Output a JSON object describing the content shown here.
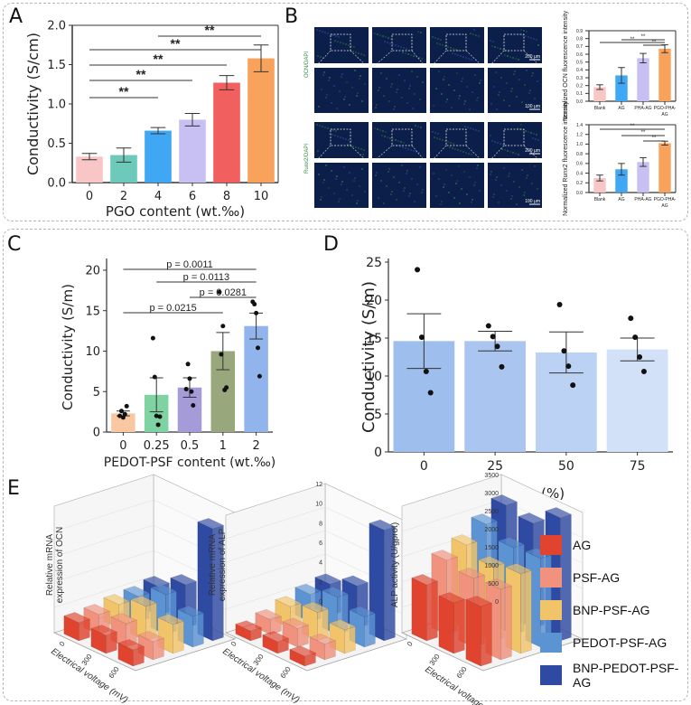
{
  "panels": {
    "A": "A",
    "B": "B",
    "C": "C",
    "D": "D",
    "E": "E"
  },
  "panel_b": {
    "row1_stain": "OCN/DAPI",
    "row2_stain": "Runx2/DAPI",
    "scale_200": "200 μm",
    "scale_100": "100 μm"
  },
  "chart_data": [
    {
      "id": "A",
      "type": "bar",
      "title": "",
      "xlabel": "PGO content (wt.‰)",
      "ylabel": "Conductivity (S/cm)",
      "categories": [
        "0",
        "2",
        "4",
        "6",
        "8",
        "10"
      ],
      "values": [
        0.33,
        0.35,
        0.66,
        0.8,
        1.27,
        1.58
      ],
      "errors": [
        0.04,
        0.09,
        0.04,
        0.08,
        0.09,
        0.17
      ],
      "colors": [
        "#f9c6c6",
        "#6dc9b9",
        "#3fa7f3",
        "#c8c0f3",
        "#f25f5f",
        "#f9a25c"
      ],
      "ylim": [
        0.0,
        2.0
      ],
      "yticks": [
        "0.0",
        "0.5",
        "1.0",
        "1.5",
        "2.0"
      ],
      "significance": [
        {
          "from": "0",
          "to": "4",
          "label": "**"
        },
        {
          "from": "0",
          "to": "6",
          "label": "**"
        },
        {
          "from": "0",
          "to": "8",
          "label": "**"
        },
        {
          "from": "0",
          "to": "10",
          "label": "**"
        },
        {
          "from": "4",
          "to": "10",
          "label": "**"
        }
      ]
    },
    {
      "id": "B-top",
      "type": "bar",
      "ylabel": "Normalized OCN fluorescence intensity",
      "categories": [
        "Blank",
        "AG",
        "PHA-AG",
        "PGO-PHA-AG"
      ],
      "values": [
        0.18,
        0.33,
        0.55,
        0.67
      ],
      "errors": [
        0.03,
        0.1,
        0.06,
        0.05
      ],
      "colors": [
        "#f9c6c6",
        "#3fa7f3",
        "#c8c0f3",
        "#f9a25c"
      ],
      "ylim": [
        0.0,
        0.9
      ],
      "yticks": [
        "0.0",
        "0.1",
        "0.2",
        "0.3",
        "0.4",
        "0.5",
        "0.6",
        "0.7",
        "0.8",
        "0.9"
      ],
      "significance": [
        {
          "from": "Blank",
          "to": "PGO-PHA-AG",
          "label": "**"
        },
        {
          "from": "AG",
          "to": "PGO-PHA-AG",
          "label": "**"
        },
        {
          "from": "PHA-AG",
          "to": "PGO-PHA-AG",
          "label": "**"
        }
      ]
    },
    {
      "id": "B-bottom",
      "type": "bar",
      "ylabel": "Normalized Runx2 fluorescence intensity",
      "categories": [
        "Blank",
        "AG",
        "PHA-AG",
        "PGO-PHA-AG"
      ],
      "values": [
        0.3,
        0.48,
        0.63,
        1.02
      ],
      "errors": [
        0.06,
        0.12,
        0.09,
        0.04
      ],
      "colors": [
        "#f9c6c6",
        "#3fa7f3",
        "#c8c0f3",
        "#f9a25c"
      ],
      "ylim": [
        0.0,
        1.4
      ],
      "yticks": [
        "0.0",
        "0.2",
        "0.4",
        "0.6",
        "0.8",
        "1.0",
        "1.2",
        "1.4"
      ],
      "significance": [
        {
          "from": "Blank",
          "to": "PGO-PHA-AG",
          "label": "**"
        },
        {
          "from": "AG",
          "to": "PGO-PHA-AG",
          "label": "**"
        },
        {
          "from": "PHA-AG",
          "to": "PGO-PHA-AG",
          "label": "**"
        }
      ]
    },
    {
      "id": "C",
      "type": "bar",
      "xlabel": "PEDOT-PSF content (wt.‰)",
      "ylabel": "Conductivity (S/m)",
      "categories": [
        "0",
        "0.25",
        "0.5",
        "1",
        "2"
      ],
      "values": [
        2.3,
        4.6,
        5.5,
        10.0,
        13.1
      ],
      "errors": [
        0.3,
        2.1,
        1.2,
        2.3,
        1.6
      ],
      "colors": [
        "#f9c8a3",
        "#7fd3a2",
        "#a59bd8",
        "#98a87c",
        "#92b4ec"
      ],
      "points": [
        [
          2.0,
          2.6,
          1.8,
          2.2,
          3.2
        ],
        [
          11.6,
          6.8,
          2.0,
          0.9,
          1.9
        ],
        [
          5.3,
          8.4,
          6.6,
          5.0,
          3.3
        ],
        [
          17.3,
          9.6,
          13.1,
          5.2,
          5.5
        ],
        [
          16.1,
          15.8,
          14.7,
          10.4,
          6.9
        ]
      ],
      "ylim": [
        0,
        21
      ],
      "yticks": [
        "0",
        "5",
        "10",
        "15",
        "20"
      ],
      "significance": [
        {
          "from": "0",
          "to": "1",
          "label": "p = 0.0215"
        },
        {
          "from": "0.5",
          "to": "2",
          "label": "p = 0.0281"
        },
        {
          "from": "0.25",
          "to": "2",
          "label": "p = 0.0113"
        },
        {
          "from": "0",
          "to": "2",
          "label": "p = 0.0011"
        }
      ]
    },
    {
      "id": "D",
      "type": "bar",
      "xlabel": "Strain (%)",
      "ylabel": "Conductivity (S/m)",
      "categories": [
        "0",
        "25",
        "50",
        "75"
      ],
      "values": [
        14.6,
        14.6,
        13.1,
        13.5
      ],
      "errors": [
        3.6,
        1.3,
        2.7,
        1.5
      ],
      "colors": [
        "#9ebeee",
        "#aac6f0",
        "#bcd2f4",
        "#d2e1f8"
      ],
      "points": [
        [
          24.0,
          15.1,
          10.6,
          7.8
        ],
        [
          16.6,
          15.2,
          13.9,
          11.2
        ],
        [
          19.4,
          13.3,
          11.3,
          8.8
        ],
        [
          17.6,
          15.1,
          12.5,
          10.6
        ]
      ],
      "ylim": [
        0,
        25
      ],
      "yticks": [
        "0",
        "5",
        "10",
        "15",
        "20",
        "25"
      ]
    },
    {
      "id": "E-OCN",
      "type": "bar3d",
      "ylabel": "Relative mRNA expression of OCN",
      "xlabel": "Electrical voltage (mV)",
      "voltages": [
        "0",
        "300",
        "600"
      ],
      "series": [
        {
          "name": "AG",
          "values": [
            1.0,
            1.0,
            0.9
          ]
        },
        {
          "name": "PSF-AG",
          "values": [
            1.1,
            1.3,
            1.0
          ]
        },
        {
          "name": "BNP-PSF-AG",
          "values": [
            1.3,
            1.9,
            1.6
          ]
        },
        {
          "name": "PEDOT-PSF-AG",
          "values": [
            1.4,
            2.2,
            1.7
          ]
        },
        {
          "name": "BNP-PEDOT-PSF-AG",
          "values": [
            1.6,
            2.4,
            6.2
          ]
        }
      ]
    },
    {
      "id": "E-ALP",
      "type": "bar3d",
      "ylabel": "Relative mRNA expression of ALP",
      "xlabel": "Electrical voltage (mV)",
      "yticks": [
        "0",
        "2",
        "4",
        "6",
        "8",
        "10",
        "12"
      ],
      "voltages": [
        "0",
        "300",
        "600"
      ],
      "series": [
        {
          "name": "AG",
          "values": [
            1.0,
            1.2,
            1.0
          ]
        },
        {
          "name": "PSF-AG",
          "values": [
            1.5,
            1.9,
            1.6
          ]
        },
        {
          "name": "BNP-PSF-AG",
          "values": [
            2.2,
            2.9,
            2.4
          ]
        },
        {
          "name": "PEDOT-PSF-AG",
          "values": [
            2.8,
            3.8,
            3.1
          ]
        },
        {
          "name": "BNP-PEDOT-PSF-AG",
          "values": [
            3.2,
            4.3,
            11.3
          ]
        }
      ]
    },
    {
      "id": "E-ALPact",
      "type": "bar3d",
      "ylabel": "ALP activity (U/gprot)",
      "xlabel": "Electrical voltage (mV)",
      "yticks": [
        "0",
        "500",
        "1000",
        "1500",
        "2000",
        "2500",
        "3000",
        "3500"
      ],
      "voltages": [
        "0",
        "300",
        "600"
      ],
      "series": [
        {
          "name": "AG",
          "values": [
            1550,
            1400,
            1650
          ]
        },
        {
          "name": "PSF-AG",
          "values": [
            2050,
            1900,
            1950
          ]
        },
        {
          "name": "BNP-PSF-AG",
          "values": [
            2300,
            2050,
            2200
          ]
        },
        {
          "name": "PEDOT-PSF-AG",
          "values": [
            2700,
            2400,
            2450
          ]
        },
        {
          "name": "BNP-PEDOT-PSF-AG",
          "values": [
            3050,
            2900,
            3400
          ]
        }
      ]
    }
  ],
  "legend": [
    {
      "name": "AG",
      "color": "#e0442f"
    },
    {
      "name": "PSF-AG",
      "color": "#f0927e"
    },
    {
      "name": "BNP-PSF-AG",
      "color": "#f2c46a"
    },
    {
      "name": "PEDOT-PSF-AG",
      "color": "#5b93d3"
    },
    {
      "name": "BNP-PEDOT-PSF-AG",
      "color": "#2e4aa2"
    }
  ]
}
